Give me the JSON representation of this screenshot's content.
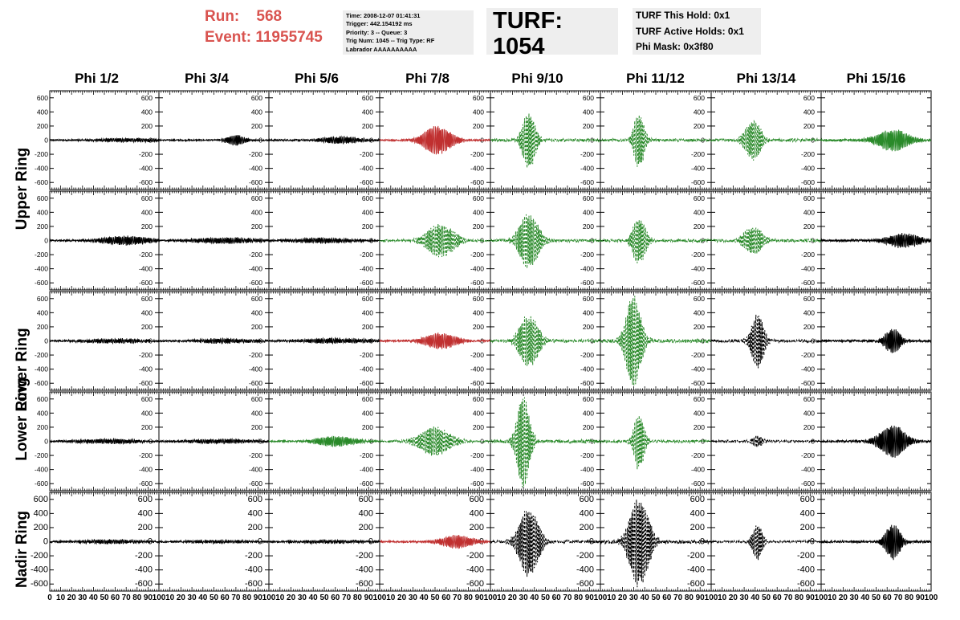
{
  "header": {
    "run_label": "Run:    568",
    "event_label": "Event: 11955745",
    "info_lines": [
      "Time: 2008-12-07 01:41:31",
      "Trigger: 442.154192 ms",
      "Priority: 3 -- Queue: 3",
      "Trig Num: 1045 -- Trig Type: RF",
      "Labrador AAAAAAAAAA"
    ],
    "turf_label": "TURF: 1054",
    "holds_lines": [
      "TURF This Hold: 0x1",
      "TURF Active Holds: 0x1",
      "Phi Mask: 0x3f80"
    ]
  },
  "columns": [
    "Phi 1/2",
    "Phi 3/4",
    "Phi 5/6",
    "Phi 7/8",
    "Phi 9/10",
    "Phi 11/12",
    "Phi 13/14",
    "Phi 15/16"
  ],
  "rows": [
    "Upper Ring",
    "Upper Ring",
    "Lower Ring",
    "Lower Ring",
    "Nadir Ring"
  ],
  "colors": {
    "red": "#c03030",
    "green": "#2a8a2a",
    "black": "#000000"
  },
  "chart_data": {
    "type": "line",
    "xlim": [
      0,
      100
    ],
    "ylim": [
      -700,
      700
    ],
    "y_ticks": [
      -600,
      -400,
      -200,
      0,
      200,
      400,
      600
    ],
    "x_ticks": [
      0,
      10,
      20,
      30,
      40,
      50,
      60,
      70,
      80,
      90,
      100
    ],
    "panels": [
      [
        {
          "color": "black",
          "style": "solid",
          "center": 70,
          "width": 55,
          "amp": 25,
          "noise": 10
        },
        {
          "color": "black",
          "style": "solid",
          "center": 70,
          "width": 15,
          "amp": 70,
          "noise": 10
        },
        {
          "color": "black",
          "style": "solid",
          "center": 65,
          "width": 30,
          "amp": 50,
          "noise": 12
        },
        {
          "color": "red",
          "style": "solid",
          "center": 52,
          "width": 22,
          "amp": 200,
          "noise": 10
        },
        {
          "color": "green",
          "style": "dashed",
          "center": 35,
          "width": 10,
          "amp": 420,
          "noise": 20
        },
        {
          "color": "green",
          "style": "dashed",
          "center": 35,
          "width": 8,
          "amp": 420,
          "noise": 20
        },
        {
          "color": "green",
          "style": "dashed",
          "center": 38,
          "width": 12,
          "amp": 300,
          "noise": 20
        },
        {
          "color": "green",
          "style": "solid",
          "center": 65,
          "width": 25,
          "amp": 150,
          "noise": 15
        }
      ],
      [
        {
          "color": "black",
          "style": "solid",
          "center": 70,
          "width": 40,
          "amp": 60,
          "noise": 12
        },
        {
          "color": "black",
          "style": "solid",
          "center": 60,
          "width": 50,
          "amp": 40,
          "noise": 12
        },
        {
          "color": "black",
          "style": "solid",
          "center": 50,
          "width": 50,
          "amp": 35,
          "noise": 12
        },
        {
          "color": "green",
          "style": "dashed",
          "center": 55,
          "width": 22,
          "amp": 230,
          "noise": 15
        },
        {
          "color": "green",
          "style": "dashed",
          "center": 35,
          "width": 15,
          "amp": 400,
          "noise": 20
        },
        {
          "color": "green",
          "style": "dashed",
          "center": 35,
          "width": 10,
          "amp": 350,
          "noise": 20
        },
        {
          "color": "green",
          "style": "dashed",
          "center": 38,
          "width": 15,
          "amp": 200,
          "noise": 20
        },
        {
          "color": "black",
          "style": "solid",
          "center": 75,
          "width": 25,
          "amp": 100,
          "noise": 15
        }
      ],
      [
        {
          "color": "black",
          "style": "solid",
          "center": 60,
          "width": 50,
          "amp": 30,
          "noise": 12
        },
        {
          "color": "black",
          "style": "solid",
          "center": 60,
          "width": 50,
          "amp": 30,
          "noise": 12
        },
        {
          "color": "black",
          "style": "solid",
          "center": 60,
          "width": 50,
          "amp": 35,
          "noise": 12
        },
        {
          "color": "red",
          "style": "solid",
          "center": 55,
          "width": 25,
          "amp": 110,
          "noise": 12
        },
        {
          "color": "green",
          "style": "dashed",
          "center": 35,
          "width": 15,
          "amp": 380,
          "noise": 20
        },
        {
          "color": "green",
          "style": "dashed",
          "center": 30,
          "width": 12,
          "amp": 650,
          "noise": 25
        },
        {
          "color": "black",
          "style": "dashed",
          "center": 42,
          "width": 10,
          "amp": 380,
          "noise": 20
        },
        {
          "color": "black",
          "style": "solid",
          "center": 65,
          "width": 12,
          "amp": 180,
          "noise": 15
        }
      ],
      [
        {
          "color": "black",
          "style": "solid",
          "center": 55,
          "width": 50,
          "amp": 30,
          "noise": 12
        },
        {
          "color": "black",
          "style": "solid",
          "center": 55,
          "width": 50,
          "amp": 30,
          "noise": 12
        },
        {
          "color": "green",
          "style": "solid",
          "center": 60,
          "width": 30,
          "amp": 70,
          "noise": 12
        },
        {
          "color": "green",
          "style": "dashed",
          "center": 50,
          "width": 25,
          "amp": 200,
          "noise": 15
        },
        {
          "color": "green",
          "style": "dashed",
          "center": 30,
          "width": 10,
          "amp": 650,
          "noise": 25
        },
        {
          "color": "green",
          "style": "dashed",
          "center": 35,
          "width": 8,
          "amp": 420,
          "noise": 20
        },
        {
          "color": "black",
          "style": "dashed",
          "center": 42,
          "width": 8,
          "amp": 80,
          "noise": 15
        },
        {
          "color": "black",
          "style": "solid",
          "center": 65,
          "width": 20,
          "amp": 230,
          "noise": 15
        }
      ],
      [
        {
          "color": "black",
          "style": "solid",
          "center": 55,
          "width": 50,
          "amp": 25,
          "noise": 12
        },
        {
          "color": "black",
          "style": "solid",
          "center": 55,
          "width": 50,
          "amp": 20,
          "noise": 12
        },
        {
          "color": "black",
          "style": "solid",
          "center": 55,
          "width": 50,
          "amp": 20,
          "noise": 12
        },
        {
          "color": "red",
          "style": "solid",
          "center": 70,
          "width": 25,
          "amp": 90,
          "noise": 12
        },
        {
          "color": "black",
          "style": "dashed",
          "center": 35,
          "width": 15,
          "amp": 500,
          "noise": 20
        },
        {
          "color": "black",
          "style": "dashed",
          "center": 35,
          "width": 15,
          "amp": 650,
          "noise": 25
        },
        {
          "color": "black",
          "style": "dashed",
          "center": 42,
          "width": 8,
          "amp": 250,
          "noise": 15
        },
        {
          "color": "black",
          "style": "solid",
          "center": 65,
          "width": 12,
          "amp": 250,
          "noise": 15
        }
      ]
    ]
  }
}
